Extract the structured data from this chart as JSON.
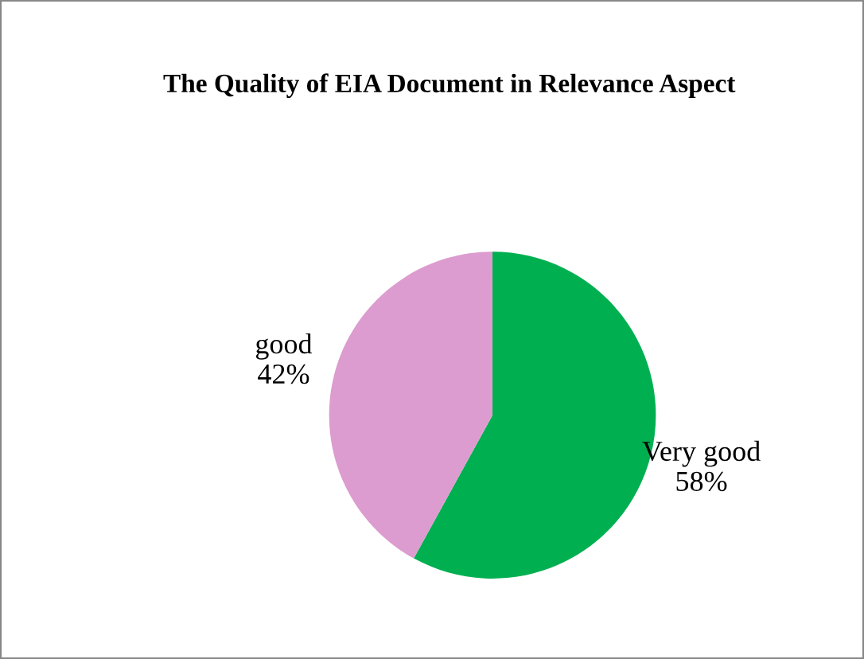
{
  "chart_data": {
    "type": "pie",
    "title": "The Quality of EIA Document in Relevance Aspect",
    "categories": [
      "Very good",
      "good"
    ],
    "values": [
      58,
      42
    ],
    "colors": [
      "#00b050",
      "#dc9ccf"
    ],
    "value_labels": [
      "58%",
      "42%"
    ],
    "legend": false
  }
}
